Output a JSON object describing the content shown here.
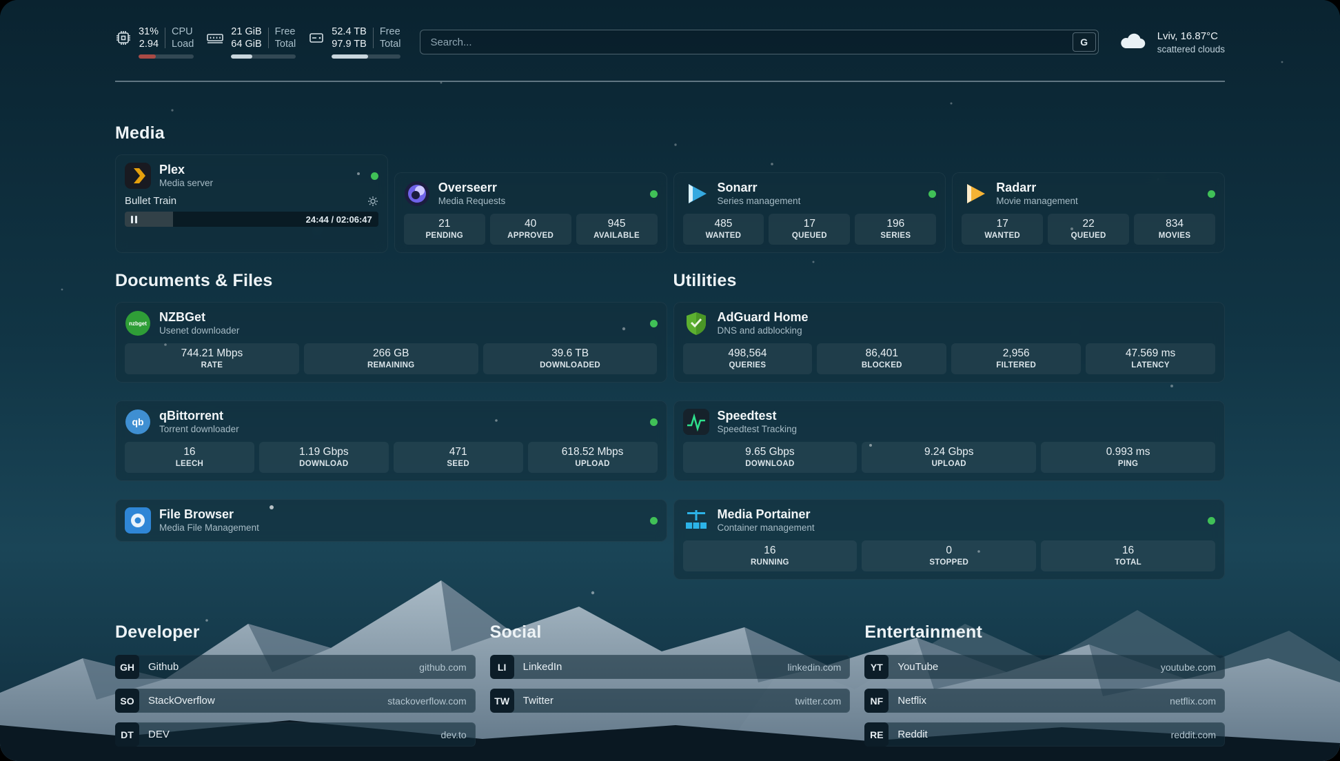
{
  "colors": {
    "online": "#40c057",
    "cpu_bar": "#a94a45",
    "memory_bar": "#c9d6dd",
    "disk_bar": "#c9d6dd"
  },
  "topbar": {
    "system": {
      "cpu": {
        "values": [
          "31%",
          "2.94"
        ],
        "labels": [
          "CPU",
          "Load"
        ],
        "percent": 31
      },
      "memory": {
        "values": [
          "21 GiB",
          "64 GiB"
        ],
        "labels": [
          "Free",
          "Total"
        ],
        "percent": 33
      },
      "disk": {
        "values": [
          "52.4 TB",
          "97.9 TB"
        ],
        "labels": [
          "Free",
          "Total"
        ],
        "percent": 53
      }
    },
    "search": {
      "placeholder": "Search...",
      "engine_button": "G"
    },
    "weather": {
      "location": "Lviv, 16.87°C",
      "condition": "scattered clouds"
    }
  },
  "sections": {
    "media": {
      "title": "Media"
    },
    "documents": {
      "title": "Documents & Files"
    },
    "utilities": {
      "title": "Utilities"
    },
    "developer": {
      "title": "Developer"
    },
    "social": {
      "title": "Social"
    },
    "entertainment": {
      "title": "Entertainment"
    }
  },
  "media": {
    "cards": [
      {
        "name": "Plex",
        "description": "Media server",
        "player": {
          "track": "Bullet Train",
          "time": "24:44 / 02:06:47",
          "progress_percent": 19
        }
      },
      {
        "name": "Overseerr",
        "description": "Media Requests",
        "stats": [
          {
            "value": "21",
            "label": "PENDING"
          },
          {
            "value": "40",
            "label": "APPROVED"
          },
          {
            "value": "945",
            "label": "AVAILABLE"
          }
        ]
      },
      {
        "name": "Sonarr",
        "description": "Series management",
        "stats": [
          {
            "value": "485",
            "label": "WANTED"
          },
          {
            "value": "17",
            "label": "QUEUED"
          },
          {
            "value": "196",
            "label": "SERIES"
          }
        ]
      },
      {
        "name": "Radarr",
        "description": "Movie management",
        "stats": [
          {
            "value": "17",
            "label": "WANTED"
          },
          {
            "value": "22",
            "label": "QUEUED"
          },
          {
            "value": "834",
            "label": "MOVIES"
          }
        ]
      }
    ]
  },
  "documents": {
    "cards": [
      {
        "name": "NZBGet",
        "description": "Usenet downloader",
        "icon_text": "nzbget",
        "stats": [
          {
            "value": "744.21 Mbps",
            "label": "RATE"
          },
          {
            "value": "266 GB",
            "label": "REMAINING"
          },
          {
            "value": "39.6 TB",
            "label": "DOWNLOADED"
          }
        ]
      },
      {
        "name": "qBittorrent",
        "description": "Torrent downloader",
        "icon_text": "qb",
        "stats": [
          {
            "value": "16",
            "label": "LEECH"
          },
          {
            "value": "1.19 Gbps",
            "label": "DOWNLOAD"
          },
          {
            "value": "471",
            "label": "SEED"
          },
          {
            "value": "618.52 Mbps",
            "label": "UPLOAD"
          }
        ]
      },
      {
        "name": "File Browser",
        "description": "Media File Management"
      }
    ]
  },
  "utilities": {
    "cards": [
      {
        "name": "AdGuard Home",
        "description": "DNS and adblocking",
        "stats": [
          {
            "value": "498,564",
            "label": "QUERIES"
          },
          {
            "value": "86,401",
            "label": "BLOCKED"
          },
          {
            "value": "2,956",
            "label": "FILTERED"
          },
          {
            "value": "47.569 ms",
            "label": "LATENCY"
          }
        ]
      },
      {
        "name": "Speedtest",
        "description": "Speedtest Tracking",
        "stats": [
          {
            "value": "9.65 Gbps",
            "label": "DOWNLOAD"
          },
          {
            "value": "9.24 Gbps",
            "label": "UPLOAD"
          },
          {
            "value": "0.993 ms",
            "label": "PING"
          }
        ]
      },
      {
        "name": "Media Portainer",
        "description": "Container management",
        "stats": [
          {
            "value": "16",
            "label": "RUNNING"
          },
          {
            "value": "0",
            "label": "STOPPED"
          },
          {
            "value": "16",
            "label": "TOTAL"
          }
        ]
      }
    ]
  },
  "links": {
    "developer": [
      {
        "abbr": "GH",
        "name": "Github",
        "url": "github.com"
      },
      {
        "abbr": "SO",
        "name": "StackOverflow",
        "url": "stackoverflow.com"
      },
      {
        "abbr": "DT",
        "name": "DEV",
        "url": "dev.to"
      }
    ],
    "social": [
      {
        "abbr": "LI",
        "name": "LinkedIn",
        "url": "linkedin.com"
      },
      {
        "abbr": "TW",
        "name": "Twitter",
        "url": "twitter.com"
      }
    ],
    "entertainment": [
      {
        "abbr": "YT",
        "name": "YouTube",
        "url": "youtube.com"
      },
      {
        "abbr": "NF",
        "name": "Netflix",
        "url": "netflix.com"
      },
      {
        "abbr": "RE",
        "name": "Reddit",
        "url": "reddit.com"
      }
    ]
  }
}
